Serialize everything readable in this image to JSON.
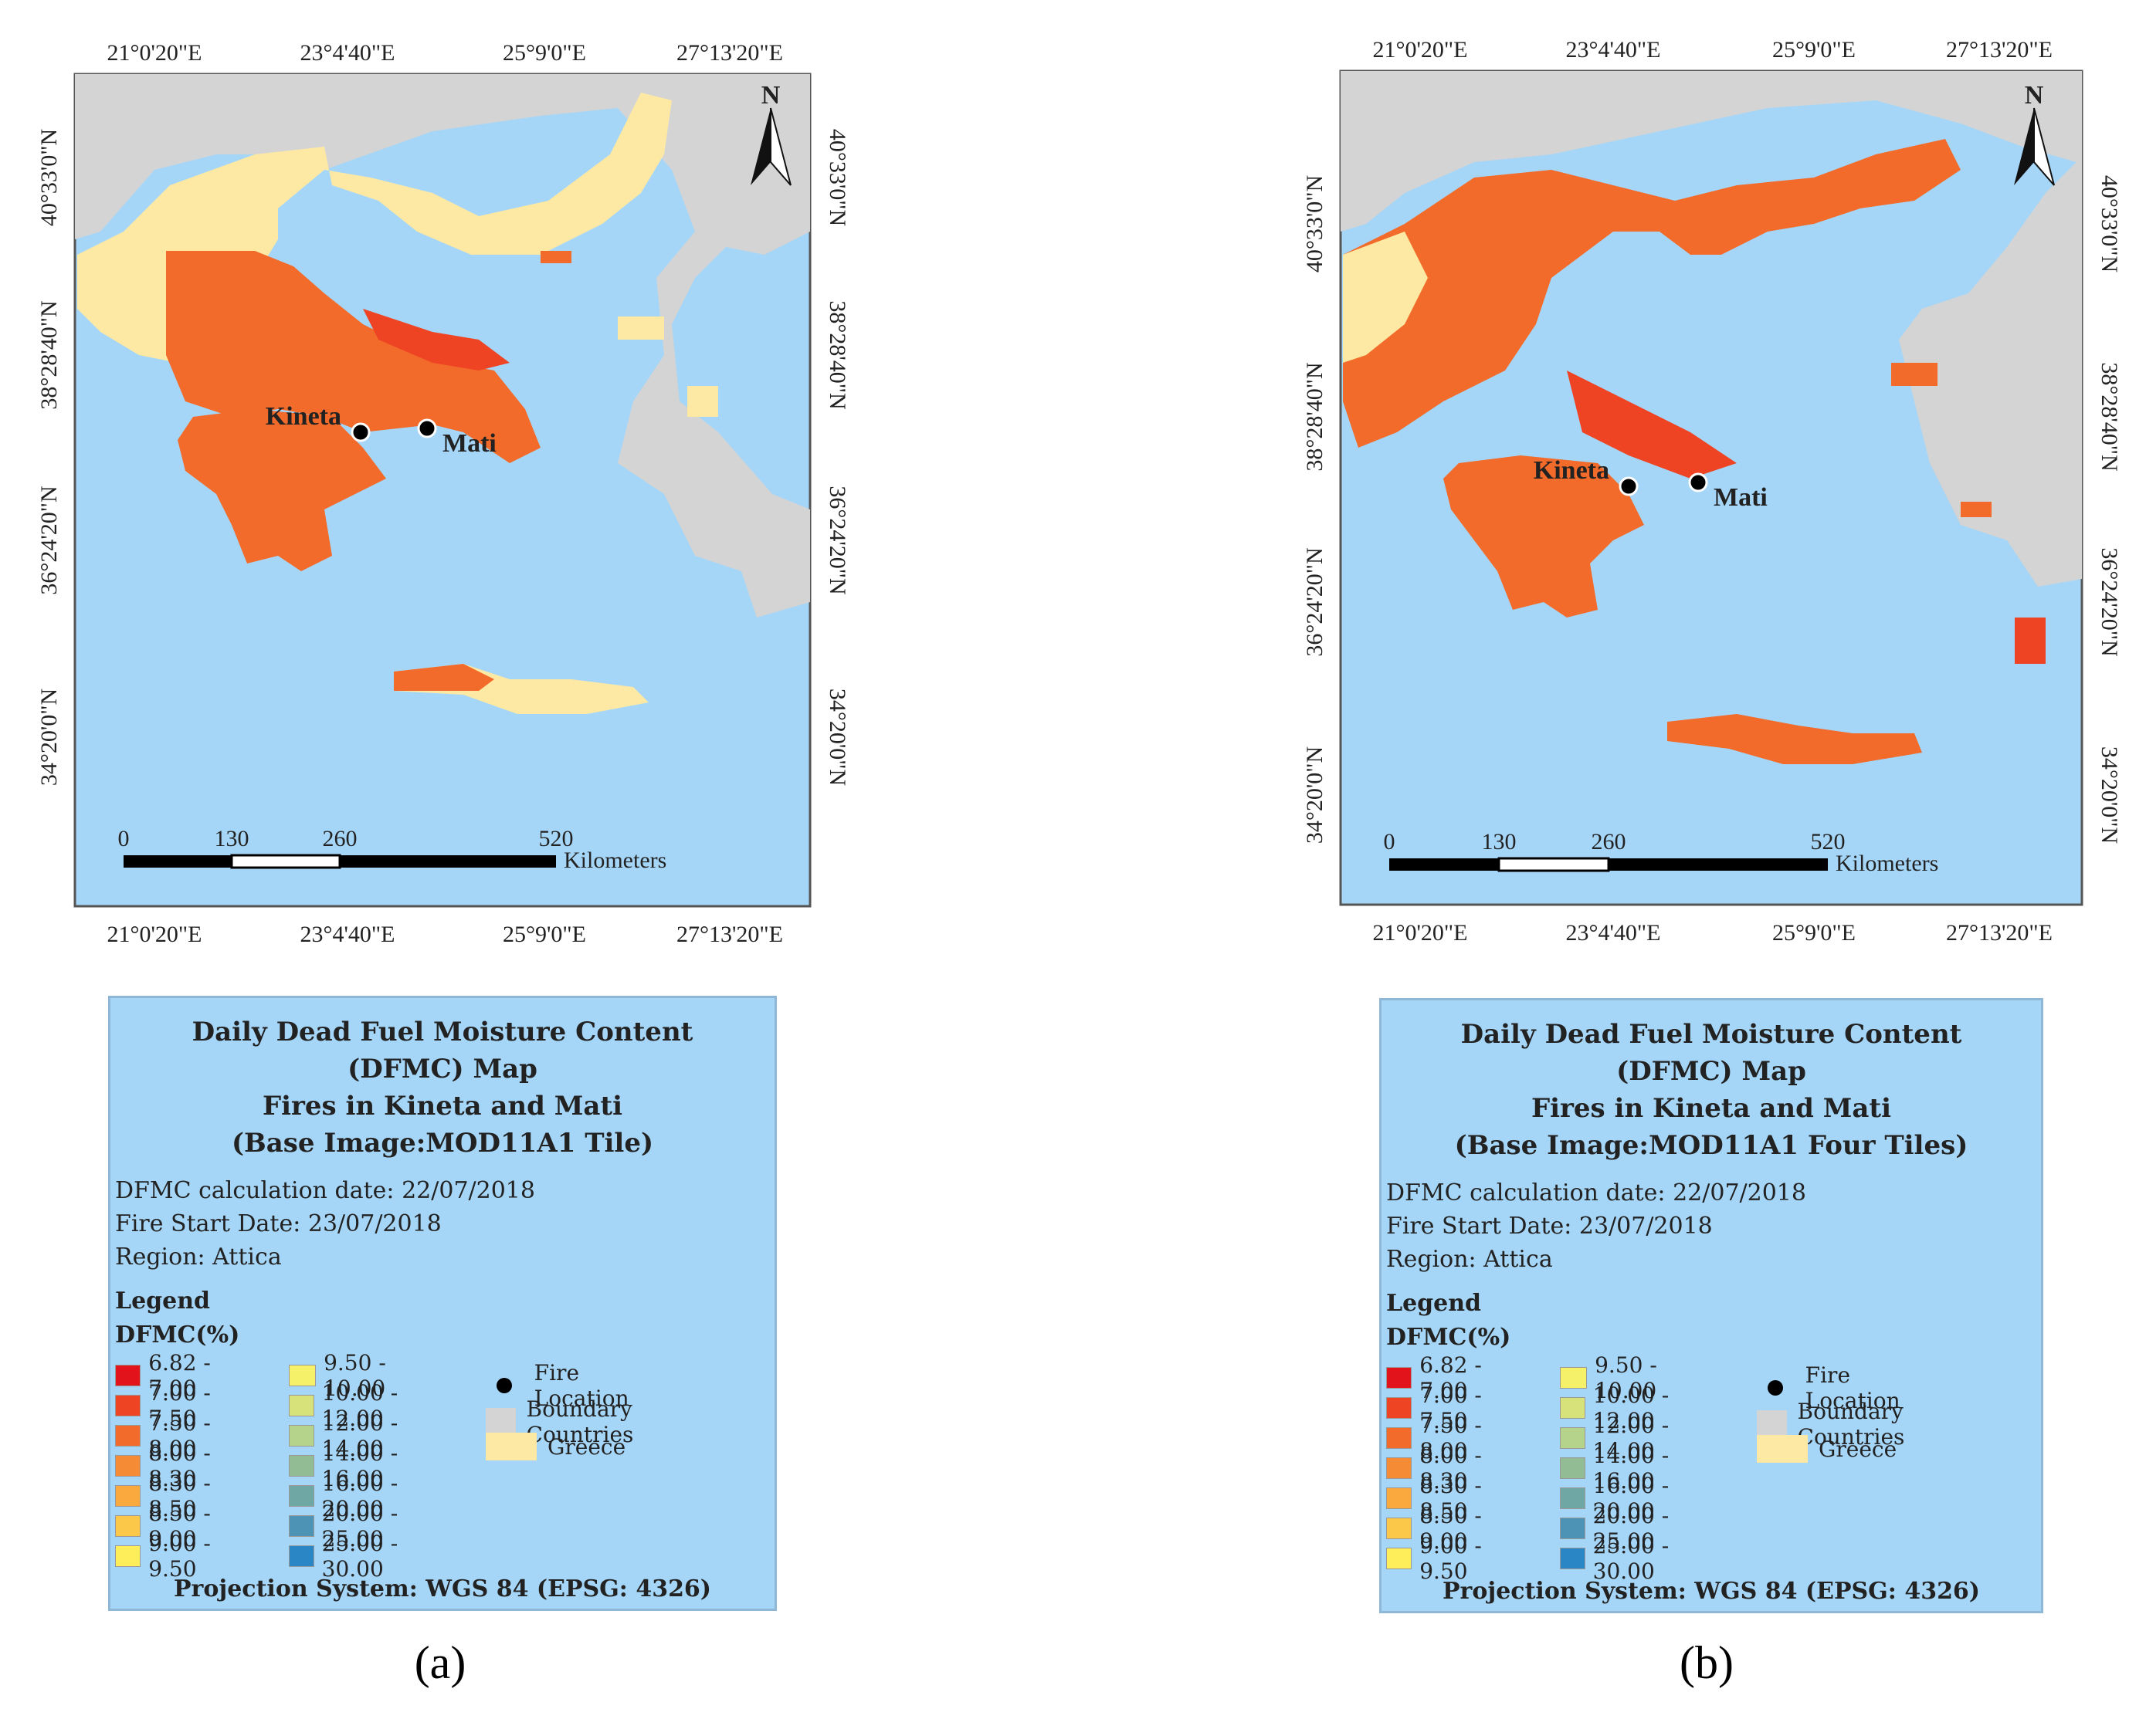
{
  "panels": [
    {
      "id": "a",
      "caption": "(a)",
      "top_ticks": [
        "21°0'20\"E",
        "23°4'40\"E",
        "25°9'0\"E",
        "27°13'20\"E"
      ],
      "bottom_ticks": [
        "21°0'20\"E",
        "23°4'40\"E",
        "25°9'0\"E",
        "27°13'20\"E"
      ],
      "left_ticks": [
        "40°33'0\"N",
        "38°28'40\"N",
        "36°24'20\"N",
        "34°20'0\"N"
      ],
      "right_ticks": [
        "40°33'0\"N",
        "38°28'40\"N",
        "36°24'20\"N",
        "34°20'0\"N"
      ],
      "north_label": "N",
      "places": [
        "Kineta",
        "Mati"
      ],
      "scalebar": {
        "ticks": [
          "0",
          "130",
          "260",
          "520"
        ],
        "unit": "Kilometers"
      },
      "legend": {
        "title_lines": [
          "Daily Dead Fuel Moisture Content",
          "(DFMC) Map",
          "Fires in Kineta and Mati",
          "(Base Image:MOD11A1 Tile)"
        ],
        "info_lines": [
          "DFMC calculation date: 22/07/2018",
          "Fire Start Date: 23/07/2018",
          "Region: Attica"
        ],
        "legend_heading": "Legend",
        "dfmc_heading": "DFMC(%)",
        "projection": "Projection System: WGS 84 (EPSG: 4326)"
      }
    },
    {
      "id": "b",
      "caption": "(b)",
      "top_ticks": [
        "21°0'20\"E",
        "23°4'40\"E",
        "25°9'0\"E",
        "27°13'20\"E"
      ],
      "bottom_ticks": [
        "21°0'20\"E",
        "23°4'40\"E",
        "25°9'0\"E",
        "27°13'20\"E"
      ],
      "left_ticks": [
        "40°33'0\"N",
        "38°28'40\"N",
        "36°24'20\"N",
        "34°20'0\"N"
      ],
      "right_ticks": [
        "40°33'0\"N",
        "38°28'40\"N",
        "36°24'20\"N",
        "34°20'0\"N"
      ],
      "north_label": "N",
      "places": [
        "Kineta",
        "Mati"
      ],
      "scalebar": {
        "ticks": [
          "0",
          "130",
          "260",
          "520"
        ],
        "unit": "Kilometers"
      },
      "legend": {
        "title_lines": [
          "Daily Dead Fuel Moisture Content",
          "(DFMC) Map",
          "Fires in Kineta and Mati",
          "(Base Image:MOD11A1 Four Tiles)"
        ],
        "info_lines": [
          "DFMC calculation date: 22/07/2018",
          "Fire Start Date: 23/07/2018",
          "Region: Attica"
        ],
        "legend_heading": "Legend",
        "dfmc_heading": "DFMC(%)",
        "projection": "Projection System: WGS 84 (EPSG: 4326)"
      }
    }
  ],
  "dfmc_classes": [
    {
      "label": "6.82 - 7.00",
      "color": "#e3131b"
    },
    {
      "label": "7.00 - 7.50",
      "color": "#ee4424"
    },
    {
      "label": "7.50 - 8.00",
      "color": "#f26b2a"
    },
    {
      "label": "8.00 - 8.30",
      "color": "#f58c35"
    },
    {
      "label": "8.30 - 8.50",
      "color": "#f9a93e"
    },
    {
      "label": "8.50 - 9.00",
      "color": "#fcc84a"
    },
    {
      "label": "9.00 - 9.50",
      "color": "#fdee5a"
    },
    {
      "label": "9.50 - 10.00",
      "color": "#f5f26a"
    },
    {
      "label": "10.00 - 12.00",
      "color": "#d8e27a"
    },
    {
      "label": "12.00 - 14.00",
      "color": "#b5d38a"
    },
    {
      "label": "14.00 - 16.00",
      "color": "#92bc94"
    },
    {
      "label": "16.00 - 20.00",
      "color": "#6ea7a4"
    },
    {
      "label": "20.00 - 25.00",
      "color": "#4c93b6"
    },
    {
      "label": "25.00 - 30.00",
      "color": "#2a86c4"
    }
  ],
  "symbols": [
    {
      "label": "Fire Location",
      "type": "dot",
      "color": "#000000"
    },
    {
      "label": "Boundary Countries",
      "type": "fill",
      "color": "#d4d4d4"
    },
    {
      "label": "Greece",
      "type": "fill",
      "color": "#fde9a4"
    }
  ],
  "colors": {
    "sea": "#a6d6f7",
    "greece": "#fde9a4",
    "boundary": "#d4d4d4",
    "dfmc_main": "#f26b2a",
    "dfmc_dark": "#ee4424"
  }
}
